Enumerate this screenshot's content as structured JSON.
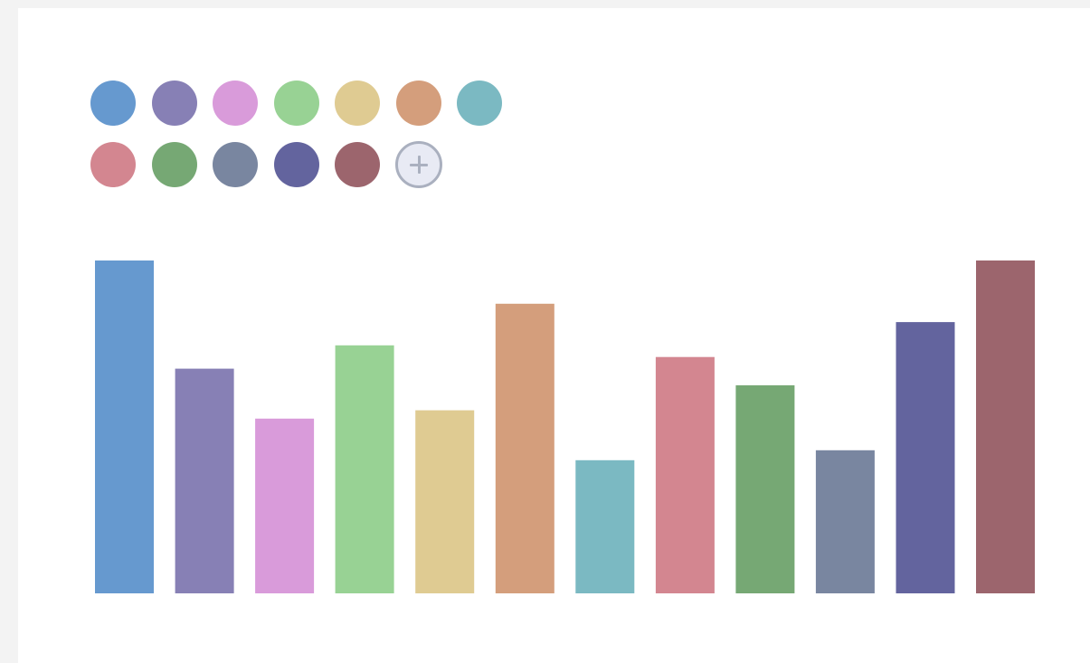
{
  "palette": {
    "colors": [
      {
        "name": "blue",
        "hex": "#6699cf"
      },
      {
        "name": "purple",
        "hex": "#8780b5"
      },
      {
        "name": "pink",
        "hex": "#d99bda"
      },
      {
        "name": "green",
        "hex": "#98d294"
      },
      {
        "name": "yellow",
        "hex": "#dfcb92"
      },
      {
        "name": "orange",
        "hex": "#d49e7c"
      },
      {
        "name": "teal",
        "hex": "#7bb9c2"
      },
      {
        "name": "rose",
        "hex": "#d38690"
      },
      {
        "name": "dark-green",
        "hex": "#76a874"
      },
      {
        "name": "slate",
        "hex": "#7986a0"
      },
      {
        "name": "indigo",
        "hex": "#63649e"
      },
      {
        "name": "maroon",
        "hex": "#9c656d"
      }
    ],
    "add_icon": "plus-icon"
  },
  "chart_data": {
    "type": "bar",
    "title": "",
    "xlabel": "",
    "ylabel": "",
    "grid": false,
    "ylim": [
      0,
      100
    ],
    "values": [
      100,
      67.5,
      52.5,
      74.5,
      55,
      87,
      40,
      71,
      62.5,
      43,
      81.5,
      100
    ],
    "colors": [
      "#6699cf",
      "#8780b5",
      "#d99bda",
      "#98d294",
      "#dfcb92",
      "#d49e7c",
      "#7bb9c2",
      "#d38690",
      "#76a874",
      "#7986a0",
      "#63649e",
      "#9c656d"
    ]
  }
}
